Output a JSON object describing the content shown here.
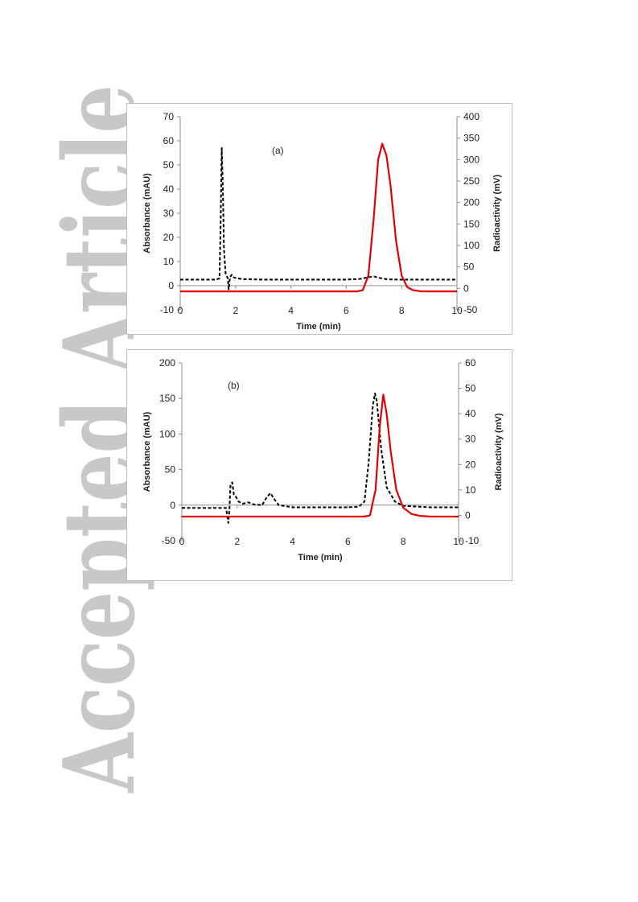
{
  "watermark": {
    "text": "Accepted Article",
    "color": "#c8c8c8"
  },
  "chart_data": [
    {
      "type": "line",
      "annotation": "(a)",
      "xlabel": "Time (min)",
      "ylabel": "Absorbance (mAU)",
      "y2label": "Radioactivity (mV)",
      "xlim": [
        0,
        10
      ],
      "ylim": [
        -10,
        70
      ],
      "y2lim": [
        -50,
        400
      ],
      "xticks": [
        0,
        2,
        4,
        6,
        8,
        10
      ],
      "yticks": [
        -10,
        0,
        10,
        20,
        30,
        40,
        50,
        60,
        70
      ],
      "y2ticks": [
        -50,
        0,
        50,
        100,
        150,
        200,
        250,
        300,
        350,
        400
      ],
      "grid": false,
      "series": [
        {
          "axis": "left",
          "style": "dashed",
          "color": "#000000",
          "x": [
            0,
            1.3,
            1.42,
            1.46,
            1.5,
            1.54,
            1.58,
            1.64,
            1.72,
            1.75,
            1.77,
            1.8,
            1.86,
            1.92,
            2.05,
            2.3,
            3,
            4,
            5,
            6,
            6.5,
            6.8,
            7.0,
            7.2,
            7.5,
            8,
            9,
            10
          ],
          "y": [
            2.5,
            2.5,
            3,
            25,
            57,
            40,
            15,
            5,
            3,
            -1.5,
            0.5,
            3.5,
            4.5,
            3.5,
            3,
            2.7,
            2.5,
            2.5,
            2.5,
            2.5,
            2.8,
            3.5,
            3.8,
            3.2,
            2.6,
            2.5,
            2.5,
            2.5
          ]
        },
        {
          "axis": "right",
          "style": "solid",
          "color": "#e00000",
          "x": [
            0,
            6.4,
            6.6,
            6.8,
            7.0,
            7.15,
            7.3,
            7.45,
            7.6,
            7.8,
            8.0,
            8.2,
            8.4,
            8.7,
            10
          ],
          "y": [
            -7,
            -7,
            -4,
            30,
            170,
            300,
            337,
            310,
            240,
            110,
            30,
            3,
            -4,
            -7,
            -7
          ]
        }
      ]
    },
    {
      "type": "line",
      "annotation": "(b)",
      "xlabel": "Time (min)",
      "ylabel": "Absorbance (mAU)",
      "y2label": "Radioactivity (mV)",
      "xlim": [
        0,
        10
      ],
      "ylim": [
        -50,
        200
      ],
      "y2lim": [
        -10,
        60
      ],
      "xticks": [
        0,
        2,
        4,
        6,
        8,
        10
      ],
      "yticks": [
        -50,
        0,
        50,
        100,
        150,
        200
      ],
      "y2ticks": [
        -10,
        0,
        10,
        20,
        30,
        40,
        50,
        60
      ],
      "grid": false,
      "series": [
        {
          "axis": "left",
          "style": "dashed",
          "color": "#000000",
          "x": [
            0,
            1.6,
            1.68,
            1.72,
            1.76,
            1.82,
            1.88,
            1.95,
            2.05,
            2.2,
            2.4,
            2.6,
            2.9,
            3.05,
            3.2,
            3.35,
            3.5,
            4,
            5,
            6,
            6.4,
            6.6,
            6.75,
            6.9,
            6.98,
            7.05,
            7.2,
            7.4,
            7.7,
            8,
            9,
            10
          ],
          "y": [
            -4,
            -4,
            -25,
            -5,
            28,
            32,
            15,
            12,
            5,
            2,
            4,
            1,
            0,
            10,
            17,
            8,
            0,
            -3,
            -3,
            -3,
            -2,
            5,
            60,
            140,
            157,
            145,
            80,
            25,
            5,
            -1,
            -3,
            -3
          ]
        },
        {
          "axis": "right",
          "style": "solid",
          "color": "#e00000",
          "x": [
            0,
            6.6,
            6.8,
            7.0,
            7.15,
            7.28,
            7.4,
            7.55,
            7.75,
            8.0,
            8.3,
            8.6,
            9.0,
            10
          ],
          "y": [
            -0.5,
            -0.5,
            0,
            10,
            35,
            47.5,
            40,
            25,
            10,
            3,
            0.5,
            -0.2,
            -0.5,
            -0.5
          ]
        }
      ]
    }
  ]
}
